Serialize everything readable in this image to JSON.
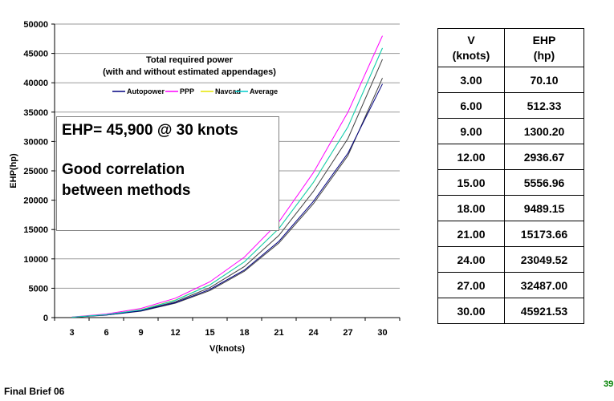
{
  "chart_data": {
    "type": "line",
    "title": "Total required power\n(with and without estimated appendages)",
    "title_lines": [
      "Total required power",
      "(with and without estimated appendages)"
    ],
    "xlabel": "V(knots)",
    "ylabel": "EHP(hp)",
    "categories": [
      "3",
      "6",
      "9",
      "12",
      "15",
      "18",
      "21",
      "24",
      "27",
      "30"
    ],
    "ylim": [
      0,
      50000
    ],
    "yticks": [
      "0",
      "5000",
      "10000",
      "15000",
      "20000",
      "25000",
      "30000",
      "35000",
      "40000",
      "45000",
      "50000"
    ],
    "grid": "horizontal",
    "legend_position": "top",
    "series": [
      {
        "name": "Autopower",
        "color": "#000080",
        "values": [
          60,
          450,
          1150,
          2550,
          4800,
          8100,
          13000,
          19800,
          28000,
          39800
        ]
      },
      {
        "name": "PPP",
        "color": "#ff00ff",
        "values": [
          95,
          620,
          1550,
          3300,
          6100,
          10300,
          16300,
          24700,
          35000,
          48000
        ]
      },
      {
        "name": "Navcad",
        "color": "#e6e600",
        "values": [
          75,
          520,
          1350,
          3000,
          5600,
          9500,
          15200,
          23000,
          32500,
          45900
        ]
      },
      {
        "name": "Average",
        "color": "#00cccc",
        "values": [
          70,
          510,
          1300,
          2940,
          5560,
          9490,
          15170,
          23050,
          32490,
          45920
        ]
      }
    ],
    "extra_lines": [
      {
        "color": "#404040",
        "values": [
          55,
          420,
          1100,
          2450,
          4600,
          7900,
          12700,
          19400,
          27600,
          40800
        ]
      },
      {
        "color": "#404040",
        "values": [
          65,
          480,
          1230,
          2700,
          5100,
          8700,
          14000,
          21500,
          30500,
          44000
        ]
      }
    ]
  },
  "annotation": {
    "line1": "EHP= 45,900 @ 30 knots",
    "line2": "Good correlation between methods"
  },
  "table": {
    "headers": [
      "V\n(knots)",
      "EHP\n(hp)"
    ],
    "header_v": [
      "V",
      "(knots)"
    ],
    "header_ehp": [
      "EHP",
      "(hp)"
    ],
    "rows": [
      [
        "3.00",
        "70.10"
      ],
      [
        "6.00",
        "512.33"
      ],
      [
        "9.00",
        "1300.20"
      ],
      [
        "12.00",
        "2936.67"
      ],
      [
        "15.00",
        "5556.96"
      ],
      [
        "18.00",
        "9489.15"
      ],
      [
        "21.00",
        "15173.66"
      ],
      [
        "24.00",
        "23049.52"
      ],
      [
        "27.00",
        "32487.00"
      ],
      [
        "30.00",
        "45921.53"
      ]
    ]
  },
  "footer": {
    "left": "Final Brief  06",
    "page": "39"
  }
}
